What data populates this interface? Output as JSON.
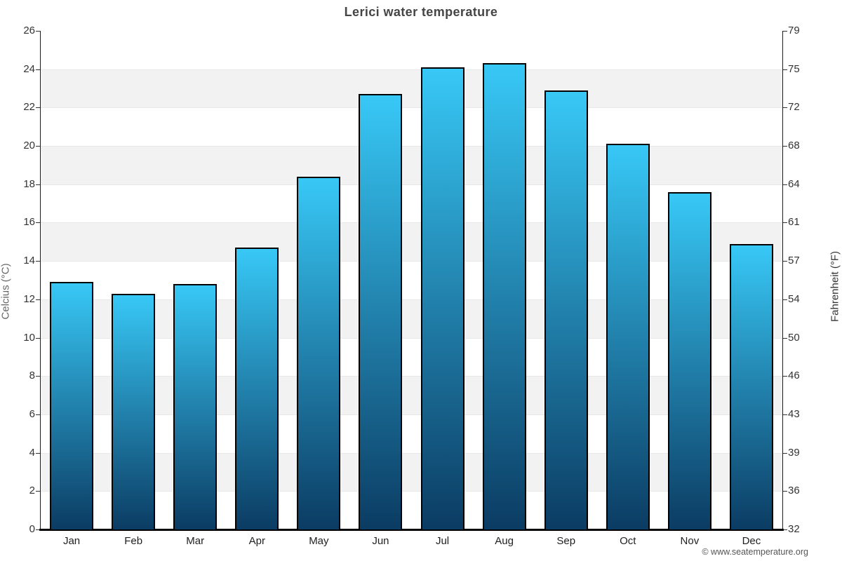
{
  "title": "Lerici water temperature",
  "chart_data": {
    "type": "bar",
    "title": "Lerici water temperature",
    "categories": [
      "Jan",
      "Feb",
      "Mar",
      "Apr",
      "May",
      "Jun",
      "Jul",
      "Aug",
      "Sep",
      "Oct",
      "Nov",
      "Dec"
    ],
    "values": [
      12.9,
      12.3,
      12.8,
      14.7,
      18.4,
      22.7,
      24.1,
      24.3,
      22.9,
      20.1,
      17.6,
      14.9
    ],
    "ylabel_left": "Celcius (°C)",
    "ylabel_right": "Fahrenheit (°F)",
    "yticks_celsius": [
      26,
      24,
      22,
      20,
      18,
      16,
      14,
      12,
      10,
      8,
      6,
      4,
      2,
      0
    ],
    "yticks_fahrenheit": [
      79,
      75,
      72,
      68,
      64,
      61,
      57,
      54,
      50,
      46,
      43,
      39,
      36,
      32
    ],
    "ylim": [
      0,
      26
    ],
    "grid": "alternating-bands",
    "legend": "none",
    "colors": {
      "bar_top": "#38c8f6",
      "bar_bottom": "#0b3c63",
      "bar_border": "#000000",
      "band_gray": "#f2f2f2",
      "band_white": "#ffffff",
      "axis": "#000000",
      "title_text": "#454545",
      "tick_text": "#333333"
    }
  },
  "footer": {
    "copyright": "© www.seatemperature.org"
  }
}
